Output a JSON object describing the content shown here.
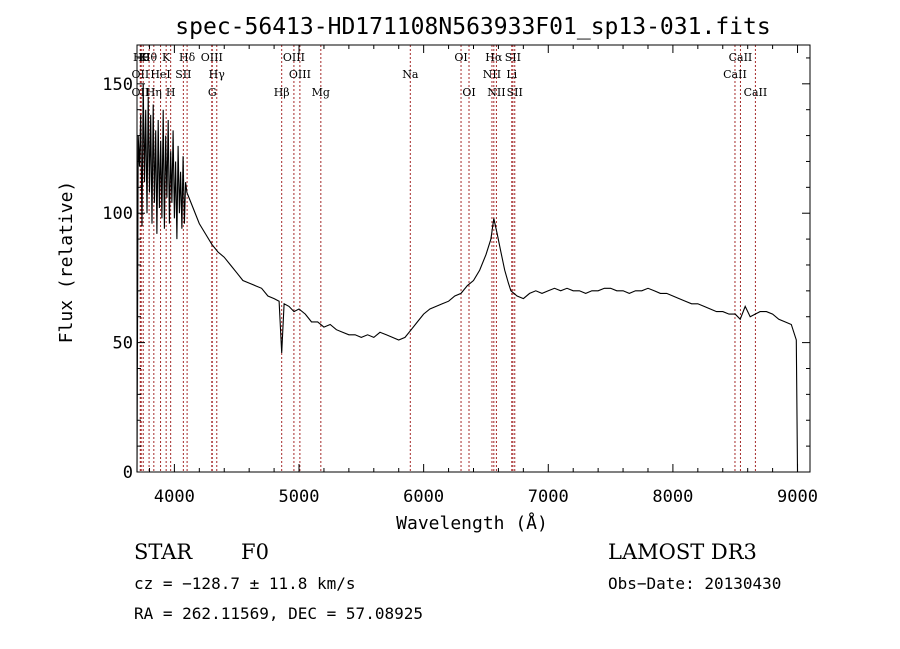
{
  "chart_data": {
    "type": "line",
    "title": "spec-56413-HD171108N563933F01_sp13-031.fits",
    "xlabel": "Wavelength (Å)",
    "ylabel": "Flux (relative)",
    "xlim": [
      3700,
      9100
    ],
    "ylim": [
      0,
      165
    ],
    "xticks": [
      {
        "value": 4000,
        "label": "4000"
      },
      {
        "value": 5000,
        "label": "5000"
      },
      {
        "value": 6000,
        "label": "6000"
      },
      {
        "value": 7000,
        "label": "7000"
      },
      {
        "value": 8000,
        "label": "8000"
      },
      {
        "value": 9000,
        "label": "9000"
      }
    ],
    "yticks": [
      {
        "value": 0,
        "label": "0"
      },
      {
        "value": 50,
        "label": "50"
      },
      {
        "value": 100,
        "label": "100"
      },
      {
        "value": 150,
        "label": "150"
      }
    ],
    "series": [
      {
        "name": "flux",
        "x": [
          3700,
          3710,
          3720,
          3730,
          3740,
          3750,
          3760,
          3770,
          3780,
          3790,
          3800,
          3810,
          3820,
          3830,
          3840,
          3850,
          3860,
          3870,
          3880,
          3890,
          3900,
          3910,
          3920,
          3930,
          3940,
          3950,
          3960,
          3970,
          3980,
          3990,
          4000,
          4010,
          4020,
          4030,
          4040,
          4050,
          4060,
          4070,
          4080,
          4090,
          4100,
          4150,
          4200,
          4250,
          4300,
          4350,
          4400,
          4450,
          4500,
          4550,
          4600,
          4650,
          4700,
          4750,
          4800,
          4840,
          4861,
          4880,
          4920,
          4960,
          5000,
          5050,
          5100,
          5150,
          5200,
          5250,
          5300,
          5350,
          5400,
          5450,
          5500,
          5550,
          5600,
          5650,
          5700,
          5750,
          5800,
          5850,
          5900,
          5950,
          6000,
          6050,
          6100,
          6150,
          6200,
          6250,
          6300,
          6350,
          6400,
          6450,
          6500,
          6540,
          6563,
          6590,
          6620,
          6650,
          6680,
          6700,
          6750,
          6800,
          6850,
          6900,
          6950,
          7000,
          7050,
          7100,
          7150,
          7200,
          7250,
          7300,
          7350,
          7400,
          7450,
          7500,
          7550,
          7600,
          7650,
          7700,
          7750,
          7800,
          7850,
          7900,
          7950,
          8000,
          8050,
          8100,
          8150,
          8200,
          8250,
          8300,
          8350,
          8400,
          8450,
          8500,
          8540,
          8580,
          8620,
          8660,
          8700,
          8750,
          8800,
          8850,
          8900,
          8950,
          8990,
          9000
        ],
        "y": [
          0,
          130,
          118,
          138,
          95,
          150,
          112,
          140,
          100,
          145,
          108,
          138,
          96,
          142,
          104,
          132,
          92,
          136,
          102,
          128,
          98,
          140,
          94,
          130,
          106,
          136,
          96,
          124,
          104,
          132,
          98,
          120,
          90,
          126,
          100,
          116,
          94,
          122,
          96,
          112,
          108,
          102,
          96,
          92,
          88,
          85,
          83,
          80,
          77,
          74,
          73,
          72,
          71,
          68,
          67,
          66,
          46,
          65,
          64,
          62,
          63,
          61,
          58,
          58,
          56,
          57,
          55,
          54,
          53,
          53,
          52,
          53,
          52,
          54,
          53,
          52,
          51,
          52,
          55,
          58,
          61,
          63,
          64,
          65,
          66,
          68,
          69,
          72,
          74,
          78,
          84,
          90,
          98,
          92,
          85,
          78,
          73,
          70,
          68,
          67,
          69,
          70,
          69,
          70,
          71,
          70,
          71,
          70,
          70,
          69,
          70,
          70,
          71,
          71,
          70,
          70,
          69,
          70,
          70,
          71,
          70,
          69,
          69,
          68,
          67,
          66,
          65,
          65,
          64,
          63,
          62,
          62,
          61,
          61,
          59,
          64,
          60,
          61,
          62,
          62,
          61,
          59,
          58,
          57,
          51,
          0
        ]
      }
    ],
    "lines": [
      {
        "wl": 3734,
        "label": "H9",
        "row": 0
      },
      {
        "wl": 3750,
        "label": "K",
        "row": 0
      },
      {
        "wl": 3797,
        "label": "Hθ",
        "row": 0
      },
      {
        "wl": 3934,
        "label": "K",
        "row": 0
      },
      {
        "wl": 4102,
        "label": "Hδ",
        "row": 0
      },
      {
        "wl": 4300,
        "label": "OIII",
        "row": 0
      },
      {
        "wl": 4959,
        "label": "OIII",
        "row": 0
      },
      {
        "wl": 6300,
        "label": "OI",
        "row": 0
      },
      {
        "wl": 6563,
        "label": "Hα",
        "row": 0
      },
      {
        "wl": 6716,
        "label": "SII",
        "row": 0
      },
      {
        "wl": 8542,
        "label": "CaII",
        "row": 0
      },
      {
        "wl": 3727,
        "label": "OII",
        "row": 1
      },
      {
        "wl": 3889,
        "label": "HeI",
        "row": 1
      },
      {
        "wl": 4072,
        "label": "SII",
        "row": 1
      },
      {
        "wl": 4340,
        "label": "Hγ",
        "row": 1
      },
      {
        "wl": 5007,
        "label": "OIII",
        "row": 1
      },
      {
        "wl": 5893,
        "label": "Na",
        "row": 1
      },
      {
        "wl": 6548,
        "label": "NII",
        "row": 1
      },
      {
        "wl": 6707,
        "label": "Li",
        "row": 1
      },
      {
        "wl": 8498,
        "label": "CaII",
        "row": 1
      },
      {
        "wl": 3727,
        "label": "OII",
        "row": 2
      },
      {
        "wl": 3835,
        "label": "Hη",
        "row": 2
      },
      {
        "wl": 3970,
        "label": "H",
        "row": 2
      },
      {
        "wl": 4304,
        "label": "G",
        "row": 2
      },
      {
        "wl": 4861,
        "label": "Hβ",
        "row": 2
      },
      {
        "wl": 5175,
        "label": "Mg",
        "row": 2
      },
      {
        "wl": 6364,
        "label": "OI",
        "row": 2
      },
      {
        "wl": 6584,
        "label": "NII",
        "row": 2
      },
      {
        "wl": 6731,
        "label": "SII",
        "row": 2
      },
      {
        "wl": 8662,
        "label": "CaII",
        "row": 2
      }
    ]
  },
  "info": {
    "class": "STAR",
    "subclass": "F0",
    "survey": "LAMOST DR3",
    "cz": "cz = −128.7 ± 11.8 km/s",
    "obsdate": "Obs−Date: 20130430",
    "radec": "RA = 262.11569, DEC =  57.08925"
  },
  "colors": {
    "line_marker": "#a52a2a",
    "spectrum": "#000000",
    "text": "#000000",
    "background": "#ffffff"
  }
}
